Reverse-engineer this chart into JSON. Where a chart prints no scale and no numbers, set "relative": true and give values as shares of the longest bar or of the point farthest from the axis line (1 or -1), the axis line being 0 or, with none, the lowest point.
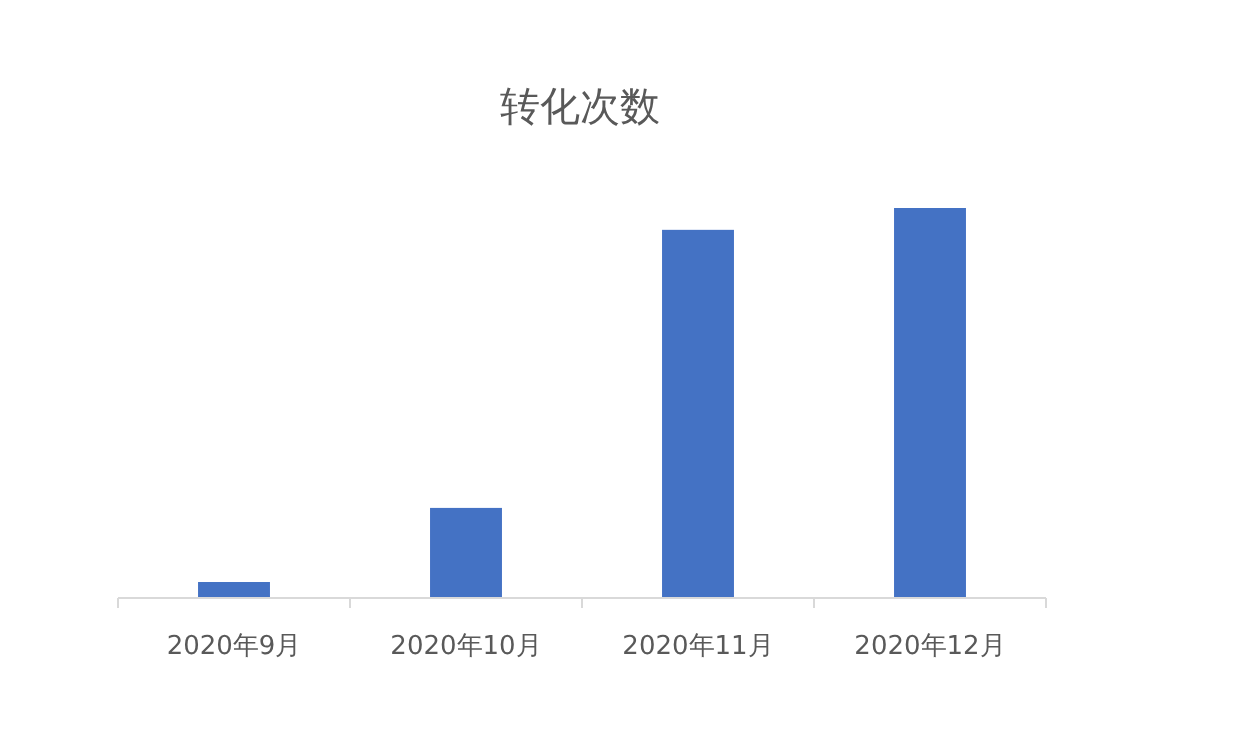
{
  "chart_data": {
    "type": "bar",
    "title": "转化次数",
    "categories": [
      "2020年9月",
      "2020年10月",
      "2020年11月",
      "2020年12月"
    ],
    "series": [
      {
        "color": "#4472c4",
        "values": [
          0.041,
          0.231,
          0.944,
          1
        ]
      }
    ],
    "relative": true
  }
}
